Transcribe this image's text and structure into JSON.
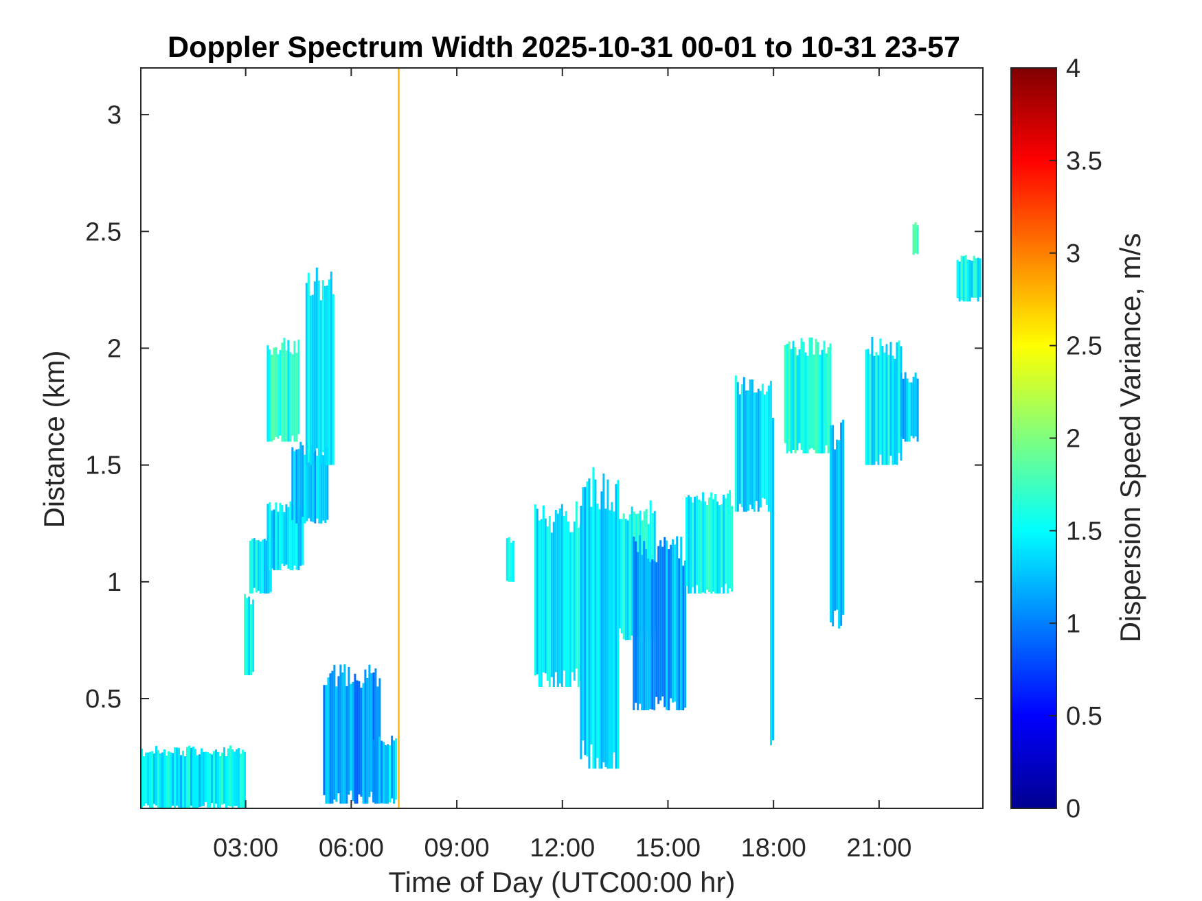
{
  "chart_data": {
    "type": "heatmap",
    "title": "Doppler Spectrum Width 2025-10-31 00-01 to 10-31 23-57",
    "xlabel": "Time of Day (UTC00:00 hr)",
    "ylabel": "Distance (km)",
    "xlim": [
      0.02,
      23.95
    ],
    "ylim": [
      0.03,
      3.2
    ],
    "x_ticks": [
      3,
      6,
      9,
      12,
      15,
      18,
      21
    ],
    "x_tick_labels": [
      "03:00",
      "06:00",
      "09:00",
      "12:00",
      "15:00",
      "18:00",
      "21:00"
    ],
    "y_ticks": [
      0.5,
      1,
      1.5,
      2,
      2.5,
      3
    ],
    "y_tick_labels": [
      "0.5",
      "1",
      "1.5",
      "2",
      "2.5",
      "3"
    ],
    "colorbar": {
      "label": "Dispersion Speed Variance, m/s",
      "range": [
        0,
        4
      ],
      "ticks": [
        0,
        0.5,
        1,
        1.5,
        2,
        2.5,
        3,
        3.5,
        4
      ],
      "tick_labels": [
        "0",
        "0.5",
        "1",
        "1.5",
        "2",
        "2.5",
        "3",
        "3.5",
        "4"
      ],
      "colormap": "jet"
    },
    "grid": false,
    "regions": [
      {
        "t0": 0.02,
        "t1": 2.95,
        "h_low": 0.03,
        "h_high": 0.3,
        "value": 1.45
      },
      {
        "t0": 2.95,
        "t1": 3.2,
        "h_low": 0.6,
        "h_high": 0.95,
        "value": 1.5
      },
      {
        "t0": 3.1,
        "t1": 3.7,
        "h_low": 0.95,
        "h_high": 1.2,
        "value": 1.4
      },
      {
        "t0": 3.6,
        "t1": 4.6,
        "h_low": 1.05,
        "h_high": 1.35,
        "value": 1.35
      },
      {
        "t0": 4.3,
        "t1": 5.3,
        "h_low": 1.25,
        "h_high": 1.6,
        "value": 1.3
      },
      {
        "t0": 3.6,
        "t1": 4.5,
        "h_low": 1.6,
        "h_high": 2.05,
        "value": 1.6
      },
      {
        "t0": 4.7,
        "t1": 5.5,
        "h_low": 1.5,
        "h_high": 2.35,
        "value": 1.5
      },
      {
        "t0": 5.2,
        "t1": 6.8,
        "h_low": 0.05,
        "h_high": 0.65,
        "value": 1.1
      },
      {
        "t0": 6.6,
        "t1": 7.3,
        "h_low": 0.05,
        "h_high": 0.35,
        "value": 1.3
      },
      {
        "t0": 10.4,
        "t1": 10.6,
        "h_low": 1.0,
        "h_high": 1.2,
        "value": 1.6
      },
      {
        "t0": 11.2,
        "t1": 12.5,
        "h_low": 0.55,
        "h_high": 1.35,
        "value": 1.4
      },
      {
        "t0": 12.5,
        "t1": 13.6,
        "h_low": 0.2,
        "h_high": 1.5,
        "value": 1.3
      },
      {
        "t0": 13.6,
        "t1": 14.6,
        "h_low": 0.75,
        "h_high": 1.35,
        "value": 1.5
      },
      {
        "t0": 14.0,
        "t1": 15.5,
        "h_low": 0.45,
        "h_high": 1.2,
        "value": 1.2
      },
      {
        "t0": 15.5,
        "t1": 16.8,
        "h_low": 0.95,
        "h_high": 1.4,
        "value": 1.5
      },
      {
        "t0": 16.9,
        "t1": 17.9,
        "h_low": 1.3,
        "h_high": 1.9,
        "value": 1.4
      },
      {
        "t0": 17.9,
        "t1": 18.0,
        "h_low": 0.3,
        "h_high": 1.9,
        "value": 1.2
      },
      {
        "t0": 18.3,
        "t1": 19.6,
        "h_low": 1.55,
        "h_high": 2.05,
        "value": 1.6
      },
      {
        "t0": 19.6,
        "t1": 20.0,
        "h_low": 0.8,
        "h_high": 1.7,
        "value": 1.2
      },
      {
        "t0": 20.6,
        "t1": 21.6,
        "h_low": 1.5,
        "h_high": 2.05,
        "value": 1.5
      },
      {
        "t0": 21.6,
        "t1": 22.1,
        "h_low": 1.6,
        "h_high": 1.9,
        "value": 1.3
      },
      {
        "t0": 21.95,
        "t1": 22.1,
        "h_low": 2.4,
        "h_high": 2.55,
        "value": 1.7
      },
      {
        "t0": 23.2,
        "t1": 23.9,
        "h_low": 2.2,
        "h_high": 2.4,
        "value": 1.5
      }
    ],
    "lines": [
      {
        "x": 7.35,
        "h_low": 0.03,
        "h_high": 3.2,
        "value": 2.8
      }
    ]
  }
}
